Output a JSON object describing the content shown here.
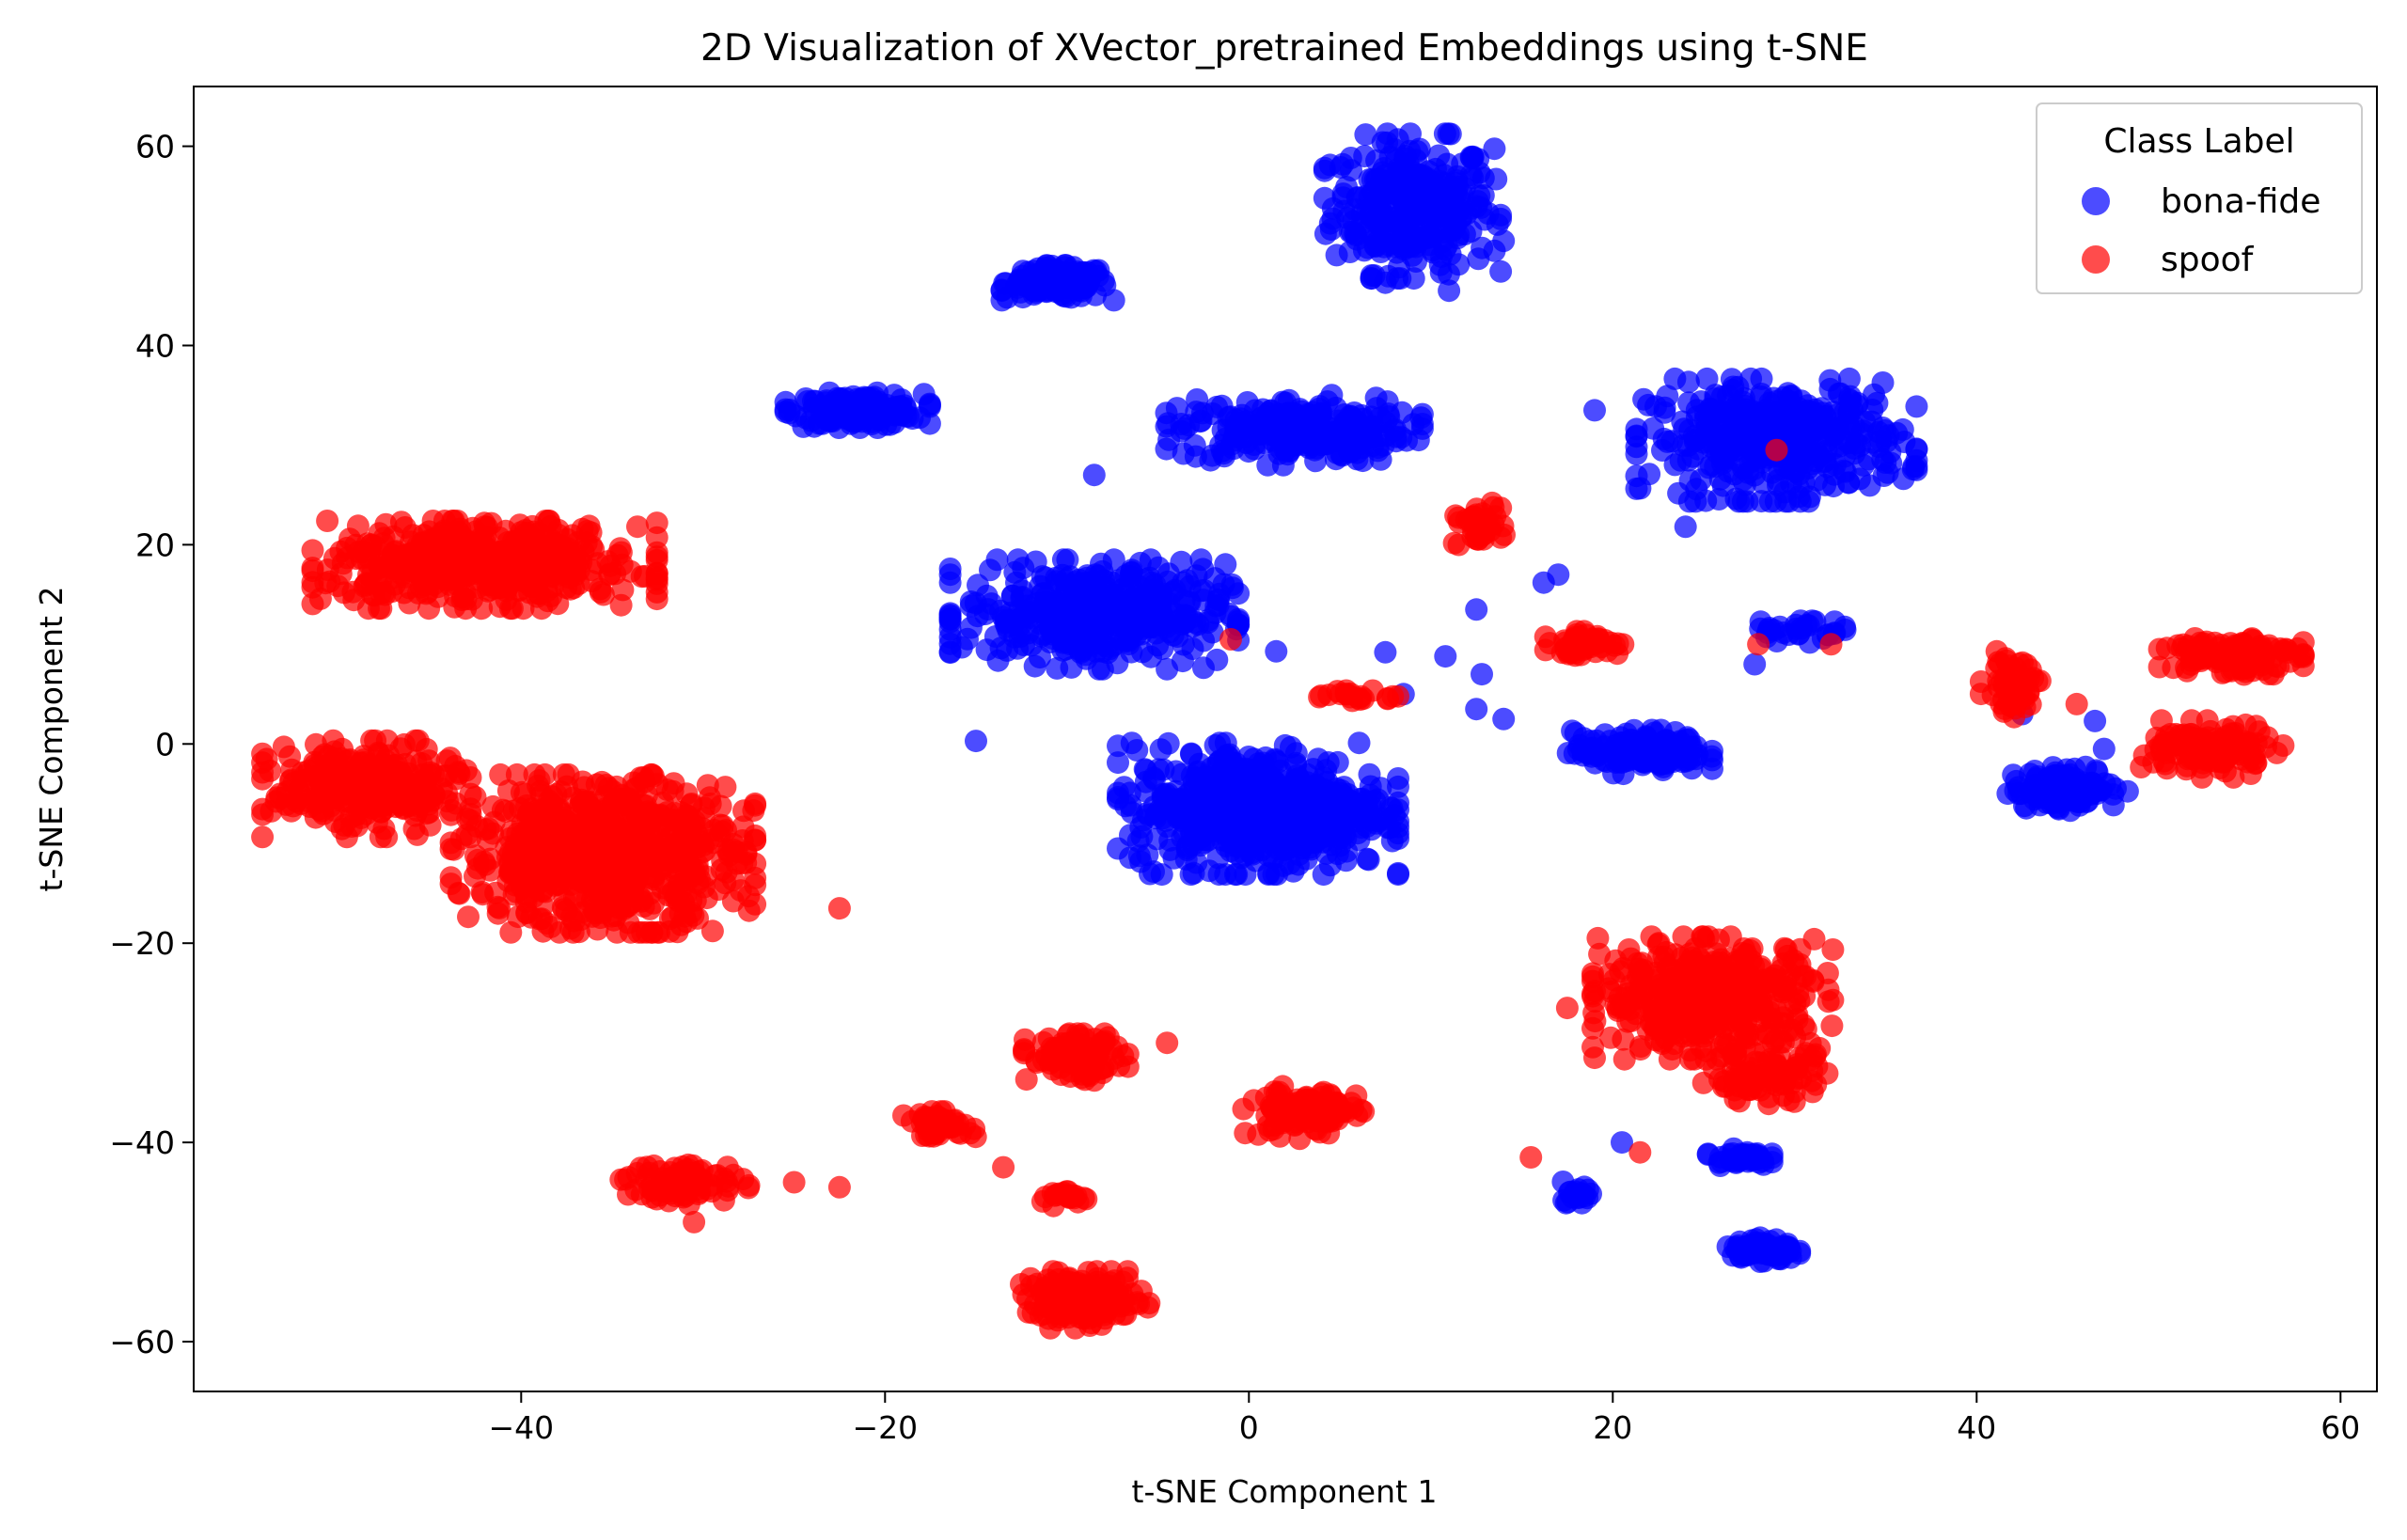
{
  "chart_data": {
    "type": "scatter",
    "title": "2D Visualization of XVector_pretrained Embeddings using t-SNE",
    "xlabel": "t-SNE Component 1",
    "ylabel": "t-SNE Component 2",
    "xlim": [
      -58,
      62
    ],
    "ylim": [
      -65,
      66
    ],
    "xticks": [
      -40,
      -20,
      0,
      20,
      40,
      60
    ],
    "yticks": [
      -60,
      -40,
      -20,
      0,
      20,
      40,
      60
    ],
    "xtick_labels": [
      "−40",
      "−20",
      "0",
      "20",
      "40",
      "60"
    ],
    "ytick_labels": [
      "−60",
      "−40",
      "−20",
      "0",
      "20",
      "40",
      "60"
    ],
    "grid": false,
    "legend": {
      "title": "Class Label",
      "position": "top-right",
      "entries": [
        "bona-fide",
        "spoof"
      ]
    },
    "series": [
      {
        "name": "bona-fide",
        "color": "#0000ff",
        "clusters": [
          {
            "cx": 9,
            "cy": 54,
            "sx": 2.2,
            "sy": 3.3,
            "n": 300
          },
          {
            "cx": -10.5,
            "cy": 46.3,
            "sx": 1.4,
            "sy": 0.8,
            "n": 150
          },
          {
            "cx": -21.5,
            "cy": 33.5,
            "sx": 1.8,
            "sy": 0.8,
            "n": 150
          },
          {
            "cx": 2.5,
            "cy": 31.5,
            "sx": 3.2,
            "sy": 1.6,
            "n": 250
          },
          {
            "cx": 29,
            "cy": 30.5,
            "sx": 3.5,
            "sy": 2.8,
            "n": 400
          },
          {
            "cx": -8.5,
            "cy": 13,
            "sx": 3.6,
            "sy": 2.5,
            "n": 400
          },
          {
            "cx": 0.5,
            "cy": -6.5,
            "sx": 3.5,
            "sy": 3,
            "n": 600
          },
          {
            "cx": 21.5,
            "cy": -0.8,
            "sx": 1.8,
            "sy": 1,
            "n": 150
          },
          {
            "cx": 45,
            "cy": -4.5,
            "sx": 1.5,
            "sy": 1,
            "n": 120
          },
          {
            "cx": 30,
            "cy": 11.5,
            "sx": 1.3,
            "sy": 0.6,
            "n": 30
          },
          {
            "cx": 27,
            "cy": -41.5,
            "sx": 0.8,
            "sy": 0.4,
            "n": 40
          },
          {
            "cx": 28.3,
            "cy": -50.8,
            "sx": 0.9,
            "sy": 0.6,
            "n": 80
          },
          {
            "cx": 18,
            "cy": -45,
            "sx": 0.5,
            "sy": 0.5,
            "n": 20
          }
        ],
        "points": [
          [
            -15,
            0.3
          ],
          [
            -8.5,
            27
          ],
          [
            1.5,
            9.3
          ],
          [
            7.5,
            9.2
          ],
          [
            8.5,
            5
          ],
          [
            10.8,
            8.8
          ],
          [
            12.8,
            7
          ],
          [
            12.5,
            13.5
          ],
          [
            14,
            2.5
          ],
          [
            16.2,
            16.2
          ],
          [
            17,
            17
          ],
          [
            20.5,
            -40
          ],
          [
            12.5,
            3.5
          ],
          [
            7.5,
            46.3
          ],
          [
            11,
            45.5
          ],
          [
            13.5,
            49.5
          ],
          [
            14,
            50.5
          ],
          [
            46.5,
            2.3
          ],
          [
            47,
            -0.5
          ],
          [
            42.5,
            3
          ],
          [
            27.8,
            8
          ],
          [
            24,
            21.8
          ],
          [
            19,
            33.5
          ]
        ]
      },
      {
        "name": "spoof",
        "color": "#ff0000",
        "clusters": [
          {
            "cx": -42,
            "cy": 18,
            "sx": 4.3,
            "sy": 2,
            "n": 500
          },
          {
            "cx": -48.5,
            "cy": -4.5,
            "sx": 2.6,
            "sy": 2.2,
            "n": 300
          },
          {
            "cx": -35.5,
            "cy": -11,
            "sx": 3.8,
            "sy": 3.6,
            "n": 700
          },
          {
            "cx": 25.5,
            "cy": -25.5,
            "sx": 3,
            "sy": 2.8,
            "n": 450
          },
          {
            "cx": 28.5,
            "cy": -33.5,
            "sx": 1.6,
            "sy": 1.2,
            "n": 80
          },
          {
            "cx": -9.5,
            "cy": -31.5,
            "sx": 1.3,
            "sy": 1.1,
            "n": 100
          },
          {
            "cx": 3,
            "cy": -37,
            "sx": 1.5,
            "sy": 1.2,
            "n": 120
          },
          {
            "cx": -17,
            "cy": -38.2,
            "sx": 0.9,
            "sy": 0.6,
            "n": 50
          },
          {
            "cx": -31,
            "cy": -44,
            "sx": 1.6,
            "sy": 1,
            "n": 90
          },
          {
            "cx": -9,
            "cy": -55.8,
            "sx": 1.6,
            "sy": 1.3,
            "n": 150
          },
          {
            "cx": -10,
            "cy": -45.5,
            "sx": 0.9,
            "sy": 0.4,
            "n": 20
          },
          {
            "cx": 18.5,
            "cy": 10,
            "sx": 1,
            "sy": 0.6,
            "n": 50
          },
          {
            "cx": 12.5,
            "cy": 22,
            "sx": 0.7,
            "sy": 1,
            "n": 40
          },
          {
            "cx": 42,
            "cy": 6,
            "sx": 0.8,
            "sy": 1.5,
            "n": 60
          },
          {
            "cx": 54,
            "cy": 9,
            "sx": 1.8,
            "sy": 1,
            "n": 120
          },
          {
            "cx": 53,
            "cy": -0.5,
            "sx": 1.8,
            "sy": 1.3,
            "n": 120
          },
          {
            "cx": 6,
            "cy": 4.7,
            "sx": 1,
            "sy": 0.3,
            "n": 20
          }
        ],
        "points": [
          [
            29,
            29.5
          ],
          [
            -1,
            10.5
          ],
          [
            -22.5,
            -16.5
          ],
          [
            -25,
            -44
          ],
          [
            -22.5,
            -44.5
          ],
          [
            -13.5,
            -42.5
          ],
          [
            -4.5,
            -30
          ],
          [
            15.5,
            -41.5
          ],
          [
            21.5,
            -41
          ],
          [
            17.5,
            -26.5
          ],
          [
            19,
            -31.5
          ],
          [
            32,
            10
          ],
          [
            28,
            10
          ],
          [
            -30.5,
            -48
          ],
          [
            45.5,
            4
          ]
        ]
      }
    ]
  }
}
